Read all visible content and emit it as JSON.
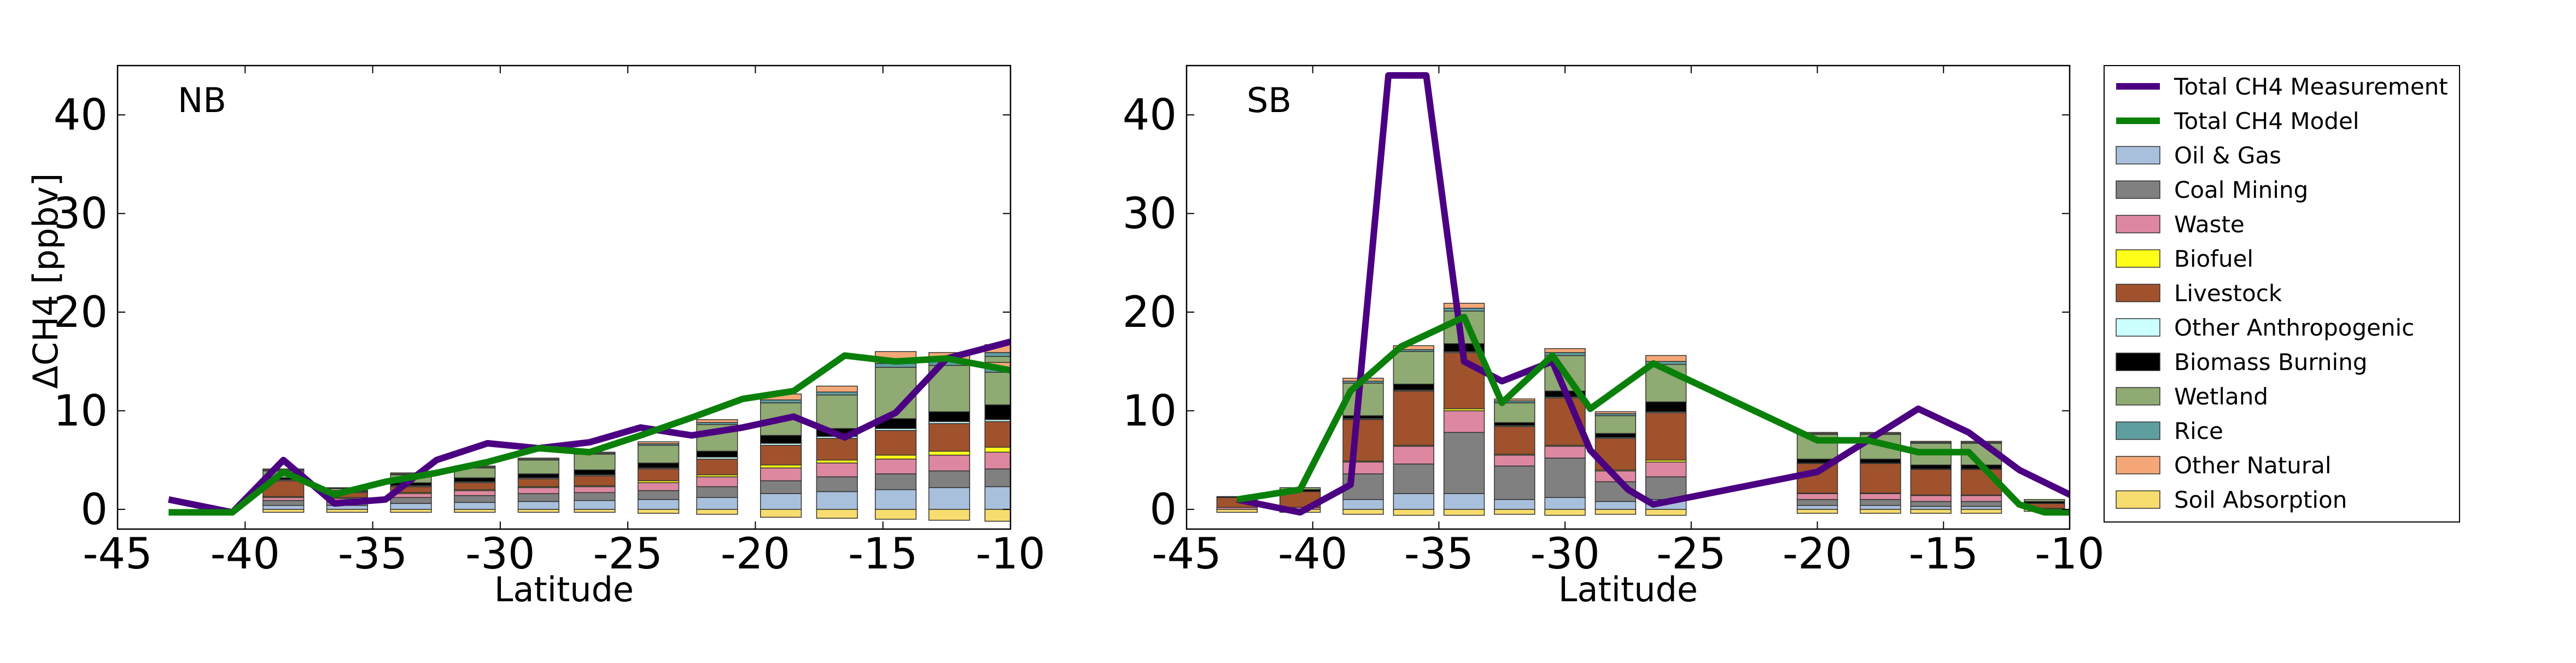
{
  "colors": {
    "Oil & Gas": "#a9c0dc",
    "Coal Mining": "#808080",
    "Waste": "#dd88a0",
    "Biofuel": "#ffff1a",
    "Livestock": "#a0522d",
    "Other Anthropogenic": "#ccffff",
    "Biomass Burning": "#000000",
    "Wetland": "#8faa72",
    "Rice": "#5f9ea0",
    "Other Natural": "#f4a878",
    "Soil Absorption": "#f7dc6f",
    "Total CH4 Measurement": "#4b0082",
    "Total CH4 Model": "#0a800a"
  },
  "chart_data": [
    {
      "type": "bar",
      "panel_label": "NB",
      "xlabel": "Latitude",
      "ylabel": "ΔCH4 [ppbv]",
      "xlim": [
        -45,
        -10
      ],
      "ylim": [
        -2,
        45
      ],
      "xticks": [
        -45,
        -40,
        -35,
        -30,
        -25,
        -20,
        -15,
        -10
      ],
      "yticks": [
        0,
        10,
        20,
        30,
        40
      ],
      "grid": false,
      "stack_order": [
        "Oil & Gas",
        "Coal Mining",
        "Waste",
        "Biofuel",
        "Livestock",
        "Other Anthropogenic",
        "Biomass Burning",
        "Wetland",
        "Rice",
        "Other Natural"
      ],
      "x": [
        -42.8,
        -40.5,
        -38.5,
        -36,
        -33.5,
        -31,
        -28.5,
        -26.3,
        -23.8,
        -21.5,
        -19,
        -16.8,
        -14.5,
        -12,
        -9.8
      ],
      "stacks": {
        "Oil & Gas": [
          0,
          0,
          0.4,
          0.4,
          0.6,
          0.7,
          0.8,
          0.9,
          1.0,
          1.2,
          1.6,
          1.8,
          2.0,
          2.2,
          2.3,
          2.3
        ],
        "Coal Mining": [
          0,
          0,
          0.5,
          0.4,
          0.6,
          0.7,
          0.8,
          0.8,
          0.9,
          1.1,
          1.3,
          1.5,
          1.6,
          1.7,
          1.8,
          1.8
        ],
        "Waste": [
          0,
          0,
          0.3,
          0.3,
          0.4,
          0.5,
          0.6,
          0.6,
          0.8,
          1.0,
          1.3,
          1.4,
          1.5,
          1.6,
          1.7,
          1.7
        ],
        "Biofuel": [
          0,
          0,
          0.1,
          0.1,
          0.1,
          0.1,
          0.1,
          0.1,
          0.2,
          0.2,
          0.3,
          0.3,
          0.4,
          0.4,
          0.5,
          0.5
        ],
        "Livestock": [
          0,
          0,
          1.6,
          0.5,
          0.6,
          0.7,
          0.8,
          1.0,
          1.2,
          1.6,
          2.0,
          2.2,
          2.5,
          2.8,
          3.0,
          2.6
        ],
        "Other Anthropogenic": [
          0,
          0,
          0.1,
          0.1,
          0.1,
          0.1,
          0.1,
          0.1,
          0.1,
          0.2,
          0.2,
          0.2,
          0.2,
          0.2,
          0.2,
          0.2
        ],
        "Biomass Burning": [
          0,
          0,
          0.2,
          0.1,
          0.3,
          0.4,
          0.4,
          0.5,
          0.5,
          0.6,
          0.8,
          0.8,
          1.0,
          1.0,
          1.4,
          1.5
        ],
        "Wetland": [
          0,
          0,
          0.7,
          0.2,
          0.8,
          1.0,
          1.4,
          1.6,
          1.8,
          2.7,
          3.3,
          3.4,
          5.2,
          4.7,
          4.6,
          3.3
        ],
        "Rice": [
          0,
          0,
          0.1,
          0.05,
          0.1,
          0.1,
          0.1,
          0.1,
          0.15,
          0.2,
          0.3,
          0.3,
          0.4,
          0.4,
          0.4,
          0.4
        ],
        "Other Natural": [
          0,
          0,
          0.1,
          0.05,
          0.1,
          0.1,
          0.1,
          0.1,
          0.2,
          0.3,
          0.6,
          0.6,
          1.2,
          0.9,
          0.8,
          0.6
        ],
        "Soil Absorption": [
          0,
          0,
          -0.3,
          -0.3,
          -0.3,
          -0.3,
          -0.3,
          -0.3,
          -0.4,
          -0.5,
          -0.8,
          -0.9,
          -1.0,
          -1.1,
          -1.2,
          -1.2
        ]
      },
      "bar_x": [
        -43,
        -40.5,
        -38.5,
        -36,
        -33.5,
        -31,
        -28.5,
        -26.3,
        -23.8,
        -21.5,
        -19,
        -16.8,
        -14.5,
        -12.4,
        -10.2,
        -10.2
      ],
      "series": [
        {
          "name": "Total CH4 Measurement",
          "x": [
            -43,
            -40.5,
            -38.5,
            -36.5,
            -34.5,
            -32.5,
            -30.5,
            -28.5,
            -26.5,
            -24.5,
            -22.5,
            -20.5,
            -18.5,
            -16.5,
            -14.5,
            -12.5,
            -10
          ],
          "values": [
            1.0,
            -0.3,
            5.0,
            0.6,
            1.0,
            5.0,
            6.7,
            6.2,
            6.8,
            8.3,
            7.5,
            8.3,
            9.4,
            7.3,
            9.8,
            15.3,
            17.0
          ]
        },
        {
          "name": "Total CH4 Model",
          "x": [
            -43,
            -40.5,
            -38.5,
            -36.5,
            -34.5,
            -32.5,
            -30.5,
            -28.5,
            -26.5,
            -24.5,
            -22.5,
            -20.5,
            -18.5,
            -16.5,
            -14.5,
            -12.5,
            -10
          ],
          "values": [
            -0.3,
            -0.3,
            3.8,
            1.5,
            2.8,
            3.7,
            4.8,
            6.2,
            5.8,
            7.5,
            9.3,
            11.2,
            12.0,
            15.6,
            15.0,
            15.3,
            14.1
          ]
        }
      ]
    },
    {
      "type": "bar",
      "panel_label": "SB",
      "xlabel": "Latitude",
      "ylabel": "",
      "xlim": [
        -45,
        -10
      ],
      "ylim": [
        -2,
        45
      ],
      "xticks": [
        -45,
        -40,
        -35,
        -30,
        -25,
        -20,
        -15,
        -10
      ],
      "yticks": [
        0,
        10,
        20,
        30,
        40
      ],
      "grid": false,
      "stack_order": [
        "Oil & Gas",
        "Coal Mining",
        "Waste",
        "Biofuel",
        "Livestock",
        "Other Anthropogenic",
        "Biomass Burning",
        "Wetland",
        "Rice",
        "Other Natural"
      ],
      "bar_x": [
        -43,
        -40.5,
        -38,
        -36,
        -34,
        -32,
        -30,
        -28,
        -26,
        -20,
        -17.5,
        -15.5,
        -13.5,
        -11,
        -9.2
      ],
      "stacks": {
        "Oil & Gas": [
          0,
          0,
          1.0,
          1.6,
          1.6,
          1.0,
          1.2,
          0.8,
          1.0,
          0.4,
          0.4,
          0.3,
          0.3,
          0,
          0
        ],
        "Coal Mining": [
          0,
          0,
          2.6,
          3.0,
          6.2,
          3.4,
          4.0,
          2.0,
          2.3,
          0.6,
          0.6,
          0.5,
          0.5,
          0,
          0
        ],
        "Waste": [
          0.2,
          0.2,
          1.2,
          1.8,
          2.2,
          1.1,
          1.2,
          1.1,
          1.5,
          0.6,
          0.6,
          0.6,
          0.6,
          0.1,
          0
        ],
        "Biofuel": [
          0,
          0,
          0.1,
          0.1,
          0.2,
          0.1,
          0.1,
          0.1,
          0.2,
          0.05,
          0.05,
          0.05,
          0.05,
          0,
          0
        ],
        "Livestock": [
          1.0,
          1.6,
          4.2,
          5.5,
          5.7,
          2.8,
          4.8,
          3.2,
          4.8,
          3.0,
          3.0,
          2.6,
          2.6,
          0.5,
          0.3
        ],
        "Other Anthropogenic": [
          0,
          0,
          0.1,
          0.1,
          0.1,
          0.1,
          0.1,
          0.1,
          0.1,
          0.05,
          0.05,
          0.05,
          0.05,
          0,
          0
        ],
        "Biomass Burning": [
          0.1,
          0.2,
          0.3,
          0.6,
          0.8,
          0.3,
          0.6,
          0.4,
          1.0,
          0.4,
          0.4,
          0.4,
          0.4,
          0.2,
          0.2
        ],
        "Wetland": [
          0,
          0.2,
          3.3,
          3.3,
          3.3,
          2.0,
          3.6,
          1.8,
          3.8,
          2.5,
          2.5,
          2.2,
          2.2,
          0.2,
          0.2
        ],
        "Rice": [
          0,
          0,
          0.2,
          0.2,
          0.3,
          0.2,
          0.3,
          0.2,
          0.3,
          0.1,
          0.1,
          0.1,
          0.1,
          0,
          0
        ],
        "Other Natural": [
          0,
          0,
          0.3,
          0.4,
          0.5,
          0.2,
          0.4,
          0.2,
          0.6,
          0.1,
          0.1,
          0.1,
          0.1,
          0,
          0
        ],
        "Soil Absorption": [
          -0.3,
          -0.3,
          -0.5,
          -0.6,
          -0.6,
          -0.5,
          -0.6,
          -0.5,
          -0.6,
          -0.4,
          -0.4,
          -0.4,
          -0.4,
          -0.2,
          -0.2
        ]
      },
      "series": [
        {
          "name": "Total CH4 Measurement",
          "x": [
            -43,
            -40.5,
            -38.5,
            -37,
            -35.5,
            -34,
            -32.5,
            -30.5,
            -29,
            -27.5,
            -26.5,
            -20,
            -18,
            -16,
            -14,
            -12,
            -10,
            -9
          ],
          "values": [
            1.0,
            -0.3,
            2.5,
            44.0,
            44.0,
            15.0,
            13.0,
            15.0,
            6.0,
            2.0,
            0.5,
            3.8,
            7.0,
            10.2,
            7.8,
            4.0,
            1.5,
            0.5
          ]
        },
        {
          "name": "Total CH4 Model",
          "x": [
            -43,
            -40.5,
            -38.5,
            -36.5,
            -34,
            -32.5,
            -30.5,
            -29,
            -26.5,
            -20,
            -18,
            -16,
            -14,
            -12,
            -11,
            -9
          ],
          "values": [
            1.0,
            2.0,
            12.0,
            16.5,
            19.5,
            10.8,
            15.6,
            10.2,
            14.8,
            7.0,
            7.0,
            5.8,
            5.8,
            0.5,
            -0.3,
            -0.3
          ]
        }
      ]
    }
  ],
  "legend": {
    "placement": "right",
    "entries": [
      {
        "label": "Total CH4 Measurement",
        "kind": "line"
      },
      {
        "label": "Total CH4 Model",
        "kind": "line"
      },
      {
        "label": "Oil & Gas",
        "kind": "patch"
      },
      {
        "label": "Coal Mining",
        "kind": "patch"
      },
      {
        "label": "Waste",
        "kind": "patch"
      },
      {
        "label": "Biofuel",
        "kind": "patch"
      },
      {
        "label": "Livestock",
        "kind": "patch"
      },
      {
        "label": "Other Anthropogenic",
        "kind": "patch"
      },
      {
        "label": "Biomass Burning",
        "kind": "patch"
      },
      {
        "label": "Wetland",
        "kind": "patch"
      },
      {
        "label": "Rice",
        "kind": "patch"
      },
      {
        "label": "Other Natural",
        "kind": "patch"
      },
      {
        "label": "Soil Absorption",
        "kind": "patch"
      }
    ]
  }
}
